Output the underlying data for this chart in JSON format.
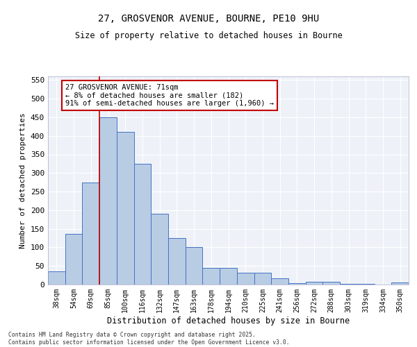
{
  "title_line1": "27, GROSVENOR AVENUE, BOURNE, PE10 9HU",
  "title_line2": "Size of property relative to detached houses in Bourne",
  "xlabel": "Distribution of detached houses by size in Bourne",
  "ylabel": "Number of detached properties",
  "categories": [
    "38sqm",
    "54sqm",
    "69sqm",
    "85sqm",
    "100sqm",
    "116sqm",
    "132sqm",
    "147sqm",
    "163sqm",
    "178sqm",
    "194sqm",
    "210sqm",
    "225sqm",
    "241sqm",
    "256sqm",
    "272sqm",
    "288sqm",
    "303sqm",
    "319sqm",
    "334sqm",
    "350sqm"
  ],
  "values": [
    35,
    137,
    275,
    450,
    410,
    325,
    190,
    125,
    101,
    45,
    45,
    31,
    31,
    17,
    3,
    7,
    7,
    2,
    2,
    0,
    5
  ],
  "bar_color": "#b8cce4",
  "bar_edge_color": "#4472c4",
  "vline_x": 2.5,
  "vline_color": "#c00000",
  "annotation_text": "27 GROSVENOR AVENUE: 71sqm\n← 8% of detached houses are smaller (182)\n91% of semi-detached houses are larger (1,960) →",
  "annotation_box_color": "#c00000",
  "annotation_bg": "#ffffff",
  "ylim": [
    0,
    560
  ],
  "yticks": [
    0,
    50,
    100,
    150,
    200,
    250,
    300,
    350,
    400,
    450,
    500,
    550
  ],
  "bg_color": "#eef2f8",
  "footer_line1": "Contains HM Land Registry data © Crown copyright and database right 2025.",
  "footer_line2": "Contains public sector information licensed under the Open Government Licence v3.0."
}
